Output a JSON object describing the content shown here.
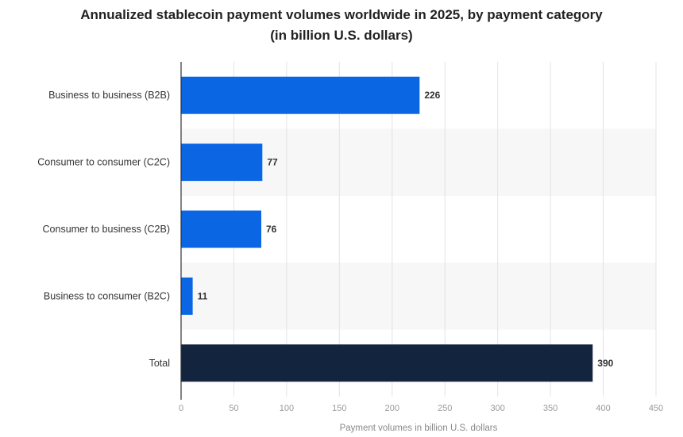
{
  "chart_data": {
    "type": "bar",
    "orientation": "horizontal",
    "title_line1": "Annualized stablecoin payment volumes worldwide in 2025, by payment category",
    "title_line2": "(in billion U.S. dollars)",
    "xlabel": "Payment volumes in billion U.S. dollars",
    "ylabel": "",
    "categories": [
      "Business to business (B2B)",
      "Consumer to consumer (C2C)",
      "Consumer to business (C2B)",
      "Business to consumer (B2C)",
      "Total"
    ],
    "values": [
      226,
      77,
      76,
      11,
      390
    ],
    "xlim": [
      0,
      450
    ],
    "xticks": [
      0,
      50,
      100,
      150,
      200,
      250,
      300,
      350,
      400,
      450
    ],
    "bar_colors": [
      "#0b66e4",
      "#0b66e4",
      "#0b66e4",
      "#0b66e4",
      "#13243e"
    ],
    "grid": true,
    "data_labels": true
  }
}
